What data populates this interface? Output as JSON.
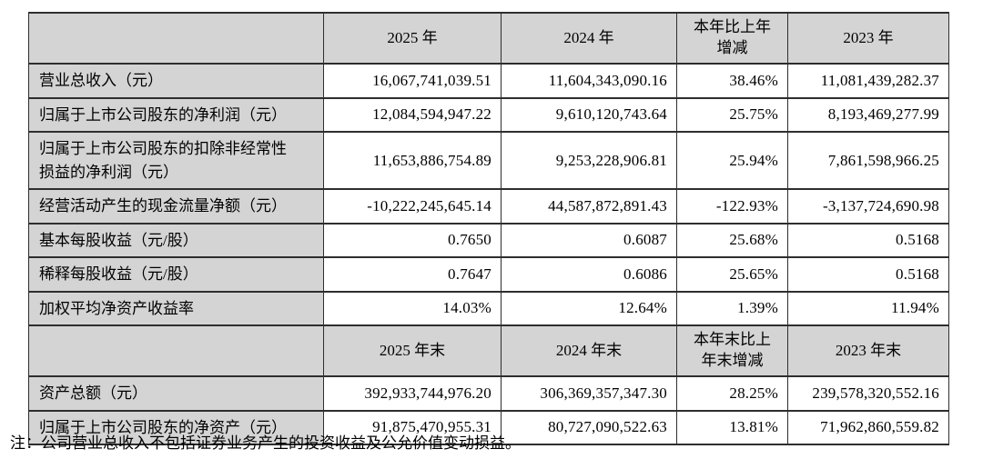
{
  "colors": {
    "page_bg": "#ffffff",
    "header_cell_bg": "#d4d4d4",
    "label_cell_bg": "#d4d4d4",
    "value_cell_bg": "#ffffff",
    "border": "#2e2e2e",
    "text": "#000000"
  },
  "table": {
    "sections": [
      {
        "corner_label": "",
        "column_headers": [
          "2025 年",
          "2024 年",
          "本年比上年\n增减",
          "2023 年"
        ],
        "rows": [
          {
            "label": "营业总收入（元）",
            "values": [
              "16,067,741,039.51",
              "11,604,343,090.16",
              "38.46%",
              "11,081,439,282.37"
            ]
          },
          {
            "label": "归属于上市公司股东的净利润（元）",
            "values": [
              "12,084,594,947.22",
              "9,610,120,743.64",
              "25.75%",
              "8,193,469,277.99"
            ]
          },
          {
            "label": "归属于上市公司股东的扣除非经常性\n损益的净利润（元）",
            "values": [
              "11,653,886,754.89",
              "9,253,228,906.81",
              "25.94%",
              "7,861,598,966.25"
            ]
          },
          {
            "label": "经营活动产生的现金流量净额（元）",
            "values": [
              "-10,222,245,645.14",
              "44,587,872,891.43",
              "-122.93%",
              "-3,137,724,690.98"
            ]
          },
          {
            "label": "基本每股收益（元/股）",
            "values": [
              "0.7650",
              "0.6087",
              "25.68%",
              "0.5168"
            ]
          },
          {
            "label": "稀释每股收益（元/股）",
            "values": [
              "0.7647",
              "0.6086",
              "25.65%",
              "0.5168"
            ]
          },
          {
            "label": "加权平均净资产收益率",
            "values": [
              "14.03%",
              "12.64%",
              "1.39%",
              "11.94%"
            ]
          }
        ]
      },
      {
        "corner_label": "",
        "column_headers": [
          "2025 年末",
          "2024 年末",
          "本年末比上\n年末增减",
          "2023 年末"
        ],
        "rows": [
          {
            "label": "资产总额（元）",
            "values": [
              "392,933,744,976.20",
              "306,369,357,347.30",
              "28.25%",
              "239,578,320,552.16"
            ]
          },
          {
            "label": "归属于上市公司股东的净资产（元）",
            "values": [
              "91,875,470,955.31",
              "80,727,090,522.63",
              "13.81%",
              "71,962,860,559.82"
            ]
          }
        ]
      }
    ]
  },
  "footnote": "注：公司营业总收入不包括证券业务产生的投资收益及公允价值变动损益。"
}
